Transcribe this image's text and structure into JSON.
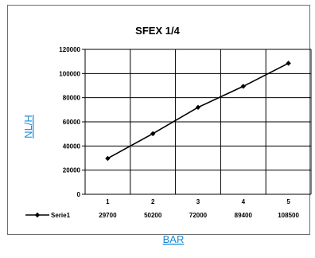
{
  "chart_data": {
    "type": "line",
    "title": "SFEX 1/4",
    "xlabel": "BAR",
    "ylabel": "NL/H",
    "categories": [
      "1",
      "2",
      "3",
      "4",
      "5"
    ],
    "series": [
      {
        "name": "Serie1",
        "values": [
          29700,
          50200,
          72000,
          89400,
          108500
        ]
      }
    ],
    "table_values": [
      "29700",
      "50200",
      "72000",
      "89400",
      "108500"
    ],
    "ylim": [
      0,
      120000
    ],
    "yticks": [
      "0",
      "20000",
      "40000",
      "60000",
      "80000",
      "100000",
      "120000"
    ],
    "grid": true,
    "legend": "bottom-left data table",
    "colors": {
      "line": "#000000",
      "grid": "#000000",
      "axis_label": "#1b8bd6"
    }
  }
}
